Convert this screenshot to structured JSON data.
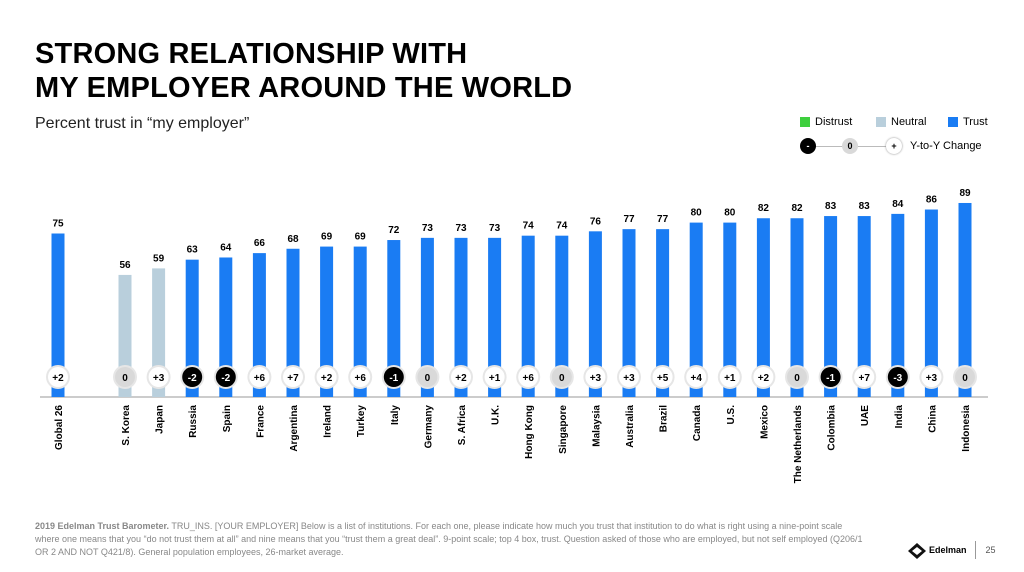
{
  "title_line1": "STRONG RELATIONSHIP WITH",
  "title_line2": "MY EMPLOYER AROUND THE WORLD",
  "subtitle": "Percent trust in “my employer”",
  "legend": {
    "distrust": "Distrust",
    "neutral": "Neutral",
    "trust": "Trust",
    "yoy_minus": "-",
    "yoy_zero": "0",
    "yoy_plus": "+",
    "yoy_label": "Y-to-Y Change"
  },
  "colors": {
    "distrust": "#3ecf3e",
    "neutral": "#b9cfdc",
    "trust": "#1a7cf3",
    "yoy_negative": "#000000",
    "yoy_zero": "#d9d9d9",
    "yoy_positive": "#ffffff"
  },
  "chart_data": {
    "type": "bar",
    "categories": [
      "Global 26",
      "S. Korea",
      "Japan",
      "Russia",
      "Spain",
      "France",
      "Argentina",
      "Ireland",
      "Turkey",
      "Italy",
      "Germany",
      "S. Africa",
      "U.K.",
      "Hong Kong",
      "Singapore",
      "Malaysia",
      "Australia",
      "Brazil",
      "Canada",
      "U.S.",
      "Mexico",
      "The Netherlands",
      "Colombia",
      "UAE",
      "India",
      "China",
      "Indonesia"
    ],
    "values": [
      75,
      56,
      59,
      63,
      64,
      66,
      68,
      69,
      69,
      72,
      73,
      73,
      73,
      74,
      74,
      76,
      77,
      77,
      80,
      80,
      82,
      82,
      83,
      83,
      84,
      86,
      89
    ],
    "classification": [
      "trust",
      "neutral",
      "neutral",
      "trust",
      "trust",
      "trust",
      "trust",
      "trust",
      "trust",
      "trust",
      "trust",
      "trust",
      "trust",
      "trust",
      "trust",
      "trust",
      "trust",
      "trust",
      "trust",
      "trust",
      "trust",
      "trust",
      "trust",
      "trust",
      "trust",
      "trust",
      "trust"
    ],
    "yoy_change": [
      "+2",
      "0",
      "+3",
      "-2",
      "-2",
      "+6",
      "+7",
      "+2",
      "+6",
      "-1",
      "0",
      "+2",
      "+1",
      "+6",
      "0",
      "+3",
      "+3",
      "+5",
      "+4",
      "+1",
      "+2",
      "0",
      "-1",
      "+7",
      "-3",
      "+3",
      "0"
    ],
    "ylim": [
      0,
      100
    ],
    "legend_position": "top-right",
    "grid": false
  },
  "footnote": {
    "bold": "2019 Edelman Trust Barometer.",
    "text": " TRU_INS. [YOUR EMPLOYER] Below is a list of institutions. For each one, please indicate how much you trust that institution to do what is right using a nine-point scale where one means that you “do not trust them at all” and nine means that you “trust them a great deal”. 9-point scale; top 4 box, trust. Question asked of those who are employed, but not self employed (Q206/1 OR 2 AND NOT Q421/8). General population employees, 26-market average."
  },
  "brand": {
    "name": "Edelman",
    "page": "25"
  }
}
